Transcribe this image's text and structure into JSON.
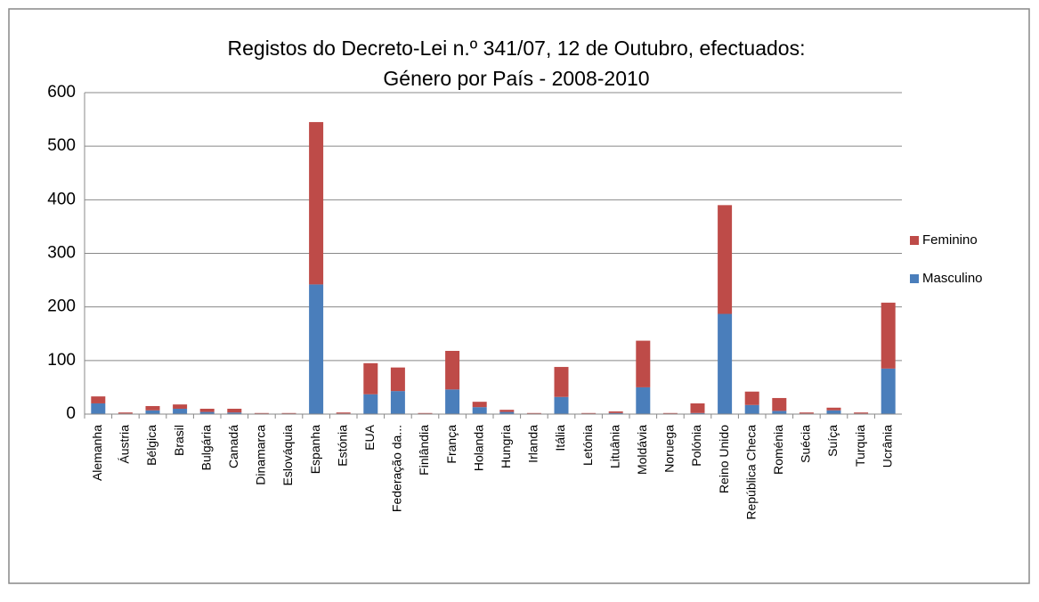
{
  "chart_data": {
    "type": "stacked_bar",
    "title": [
      "Registos do Decreto-Lei n.º 341/07, 12 de Outubro, efectuados:",
      "Género por País - 2008-2010"
    ],
    "categories": [
      "Alemanha",
      "Áustria",
      "Bélgica",
      "Brasil",
      "Bulgária",
      "Canadá",
      "Dinamarca",
      "Eslováquia",
      "Espanha",
      "Estónia",
      "EUA",
      "Federação da...",
      "Finlândia",
      "França",
      "Holanda",
      "Hungria",
      "Irlanda",
      "Itália",
      "Letónia",
      "Lituânia",
      "Moldávia",
      "Noruega",
      "Polónia",
      "Reino Unido",
      "República Checa",
      "Roménia",
      "Suécia",
      "Suíça",
      "Turquia",
      "Ucrânia"
    ],
    "series": [
      {
        "name": "Masculino",
        "color": "#4a7ebb",
        "values": [
          20,
          1,
          7,
          10,
          4,
          3,
          1,
          1,
          242,
          1,
          37,
          43,
          1,
          46,
          13,
          4,
          1,
          32,
          1,
          2,
          50,
          1,
          2,
          187,
          17,
          6,
          1,
          7,
          1,
          85
        ]
      },
      {
        "name": "Feminino",
        "color": "#be4b48",
        "values": [
          13,
          2,
          8,
          8,
          6,
          7,
          1,
          1,
          303,
          2,
          58,
          44,
          1,
          72,
          10,
          4,
          1,
          56,
          1,
          3,
          87,
          1,
          18,
          203,
          25,
          24,
          2,
          5,
          2,
          123
        ]
      }
    ],
    "ylim": [
      0,
      600
    ],
    "yticks": [
      0,
      100,
      200,
      300,
      400,
      500,
      600
    ],
    "grid": true,
    "legend": "right"
  }
}
